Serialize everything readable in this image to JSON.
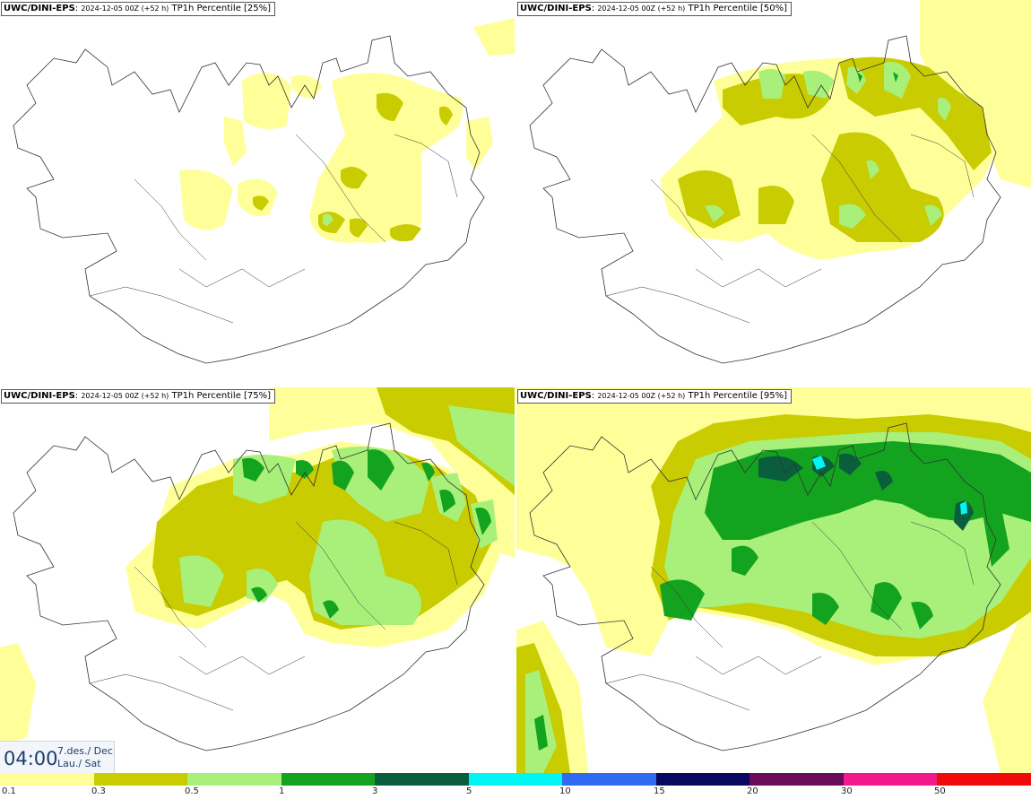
{
  "panels": [
    {
      "model": "UWC/DINI-EPS",
      "run": "2024-12-05 00Z (+52 h)",
      "product": "TP1h Percentile [25%]",
      "percentile": 25
    },
    {
      "model": "UWC/DINI-EPS",
      "run": "2024-12-05 00Z (+52 h)",
      "product": "TP1h Percentile [50%]",
      "percentile": 50
    },
    {
      "model": "UWC/DINI-EPS",
      "run": "2024-12-05 00Z (+52 h)",
      "product": "TP1h Percentile [75%]",
      "percentile": 75
    },
    {
      "model": "UWC/DINI-EPS",
      "run": "2024-12-05 00Z (+52 h)",
      "product": "TP1h Percentile [95%]",
      "percentile": 95
    }
  ],
  "time": {
    "clock": "04:00",
    "date": "7.des./ Dec",
    "day": "Lau./ Sat"
  },
  "legend": {
    "colors": [
      "#ffff99",
      "#c8cc00",
      "#a8f07a",
      "#13a31f",
      "#0a5e3e",
      "#00f5f5",
      "#2f6af0",
      "#08085e",
      "#6a0a5a",
      "#f21a8a",
      "#f00a0a"
    ],
    "labels": [
      "0.1",
      "0.3",
      "0.5",
      "1",
      "3",
      "5",
      "10",
      "15",
      "20",
      "30",
      "50"
    ]
  }
}
